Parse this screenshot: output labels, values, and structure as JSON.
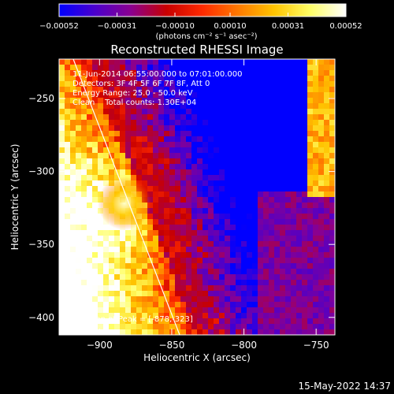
{
  "chart_data": {
    "type": "heatmap",
    "title": "Reconstructed RHESSI Image",
    "xlabel": "Heliocentric X (arcsec)",
    "ylabel": "Heliocentric Y (arcsec)",
    "xlim": [
      -928,
      -737
    ],
    "ylim": [
      -412,
      -223
    ],
    "xticks": [
      -900,
      -850,
      -800,
      -750
    ],
    "xtick_labels": [
      "−900",
      "−850",
      "−800",
      "−750"
    ],
    "yticks": [
      -400,
      -350,
      -300,
      -250
    ],
    "ytick_labels": [
      "−400",
      "−350",
      "−300",
      "−250"
    ],
    "colorbar": {
      "min": -0.00052,
      "max": 0.00052,
      "ticks": [
        -0.00052,
        -0.00031,
        -0.0001,
        0.0001,
        0.00031,
        0.00052
      ],
      "tick_labels": [
        "−0.00052",
        "−0.00031",
        "−0.00010",
        "0.00010",
        "0.00031",
        "0.00052"
      ],
      "unit": "(photons cm⁻² s⁻¹ asec⁻²)",
      "stops": [
        "#0000ff",
        "#4b00cc",
        "#8a0090",
        "#c80000",
        "#ff2a00",
        "#ff7a00",
        "#ffc400",
        "#ffff66",
        "#ffffff"
      ]
    },
    "annotations": [
      "11-Jun-2014 06:55:00.000 to 07:01:00.000",
      "Detectors: 3F 4F 5F 6F 7F 8F, Att 0",
      "Energy Range: 25.0 - 50.0 keV",
      "Clean    Total counts: 1.30E+04"
    ],
    "peak_label": "Position of Peak = [-878,-323]",
    "peak_position": [
      -878,
      -323
    ]
  },
  "footer": {
    "timestamp": "15-May-2022 14:37"
  }
}
